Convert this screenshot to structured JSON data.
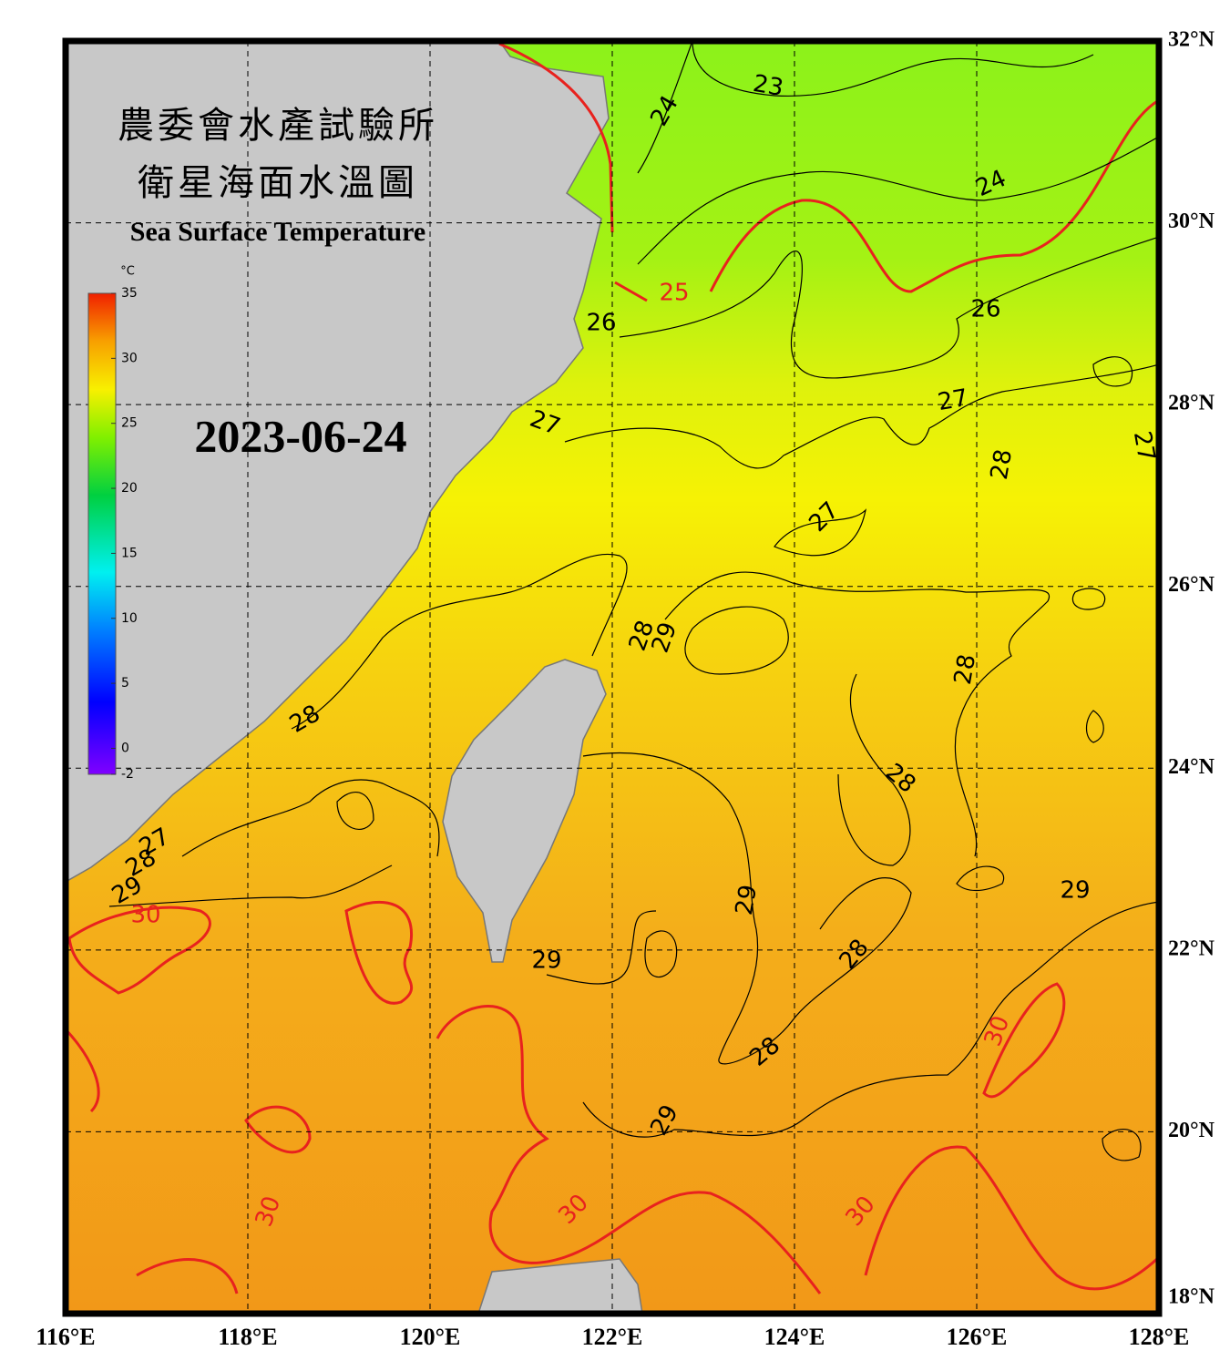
{
  "map_data": {
    "title_zh_1": "農委會水產試驗所",
    "title_zh_2": "衛星海面水溫圖",
    "title_en": "Sea Surface Temperature",
    "date": "2023-06-24",
    "colorbar": {
      "unit": "°C",
      "range": [
        -2,
        35
      ],
      "ticks": [
        35,
        30,
        25,
        20,
        15,
        10,
        5,
        0,
        -2
      ]
    },
    "lon_range": [
      116,
      128
    ],
    "lat_range": [
      18,
      32
    ],
    "lon_ticks": [
      {
        "value": 116,
        "label": "116°E"
      },
      {
        "value": 118,
        "label": "118°E"
      },
      {
        "value": 120,
        "label": "120°E"
      },
      {
        "value": 122,
        "label": "122°E"
      },
      {
        "value": 124,
        "label": "124°E"
      },
      {
        "value": 126,
        "label": "126°E"
      },
      {
        "value": 128,
        "label": "128°E"
      }
    ],
    "lat_ticks": [
      {
        "value": 18,
        "label": "18°N"
      },
      {
        "value": 20,
        "label": "20°N"
      },
      {
        "value": 22,
        "label": "22°N"
      },
      {
        "value": 24,
        "label": "24°N"
      },
      {
        "value": 26,
        "label": "26°N"
      },
      {
        "value": 28,
        "label": "28°N"
      },
      {
        "value": 30,
        "label": "30°N"
      },
      {
        "value": 32,
        "label": "32°N"
      }
    ],
    "grid": true,
    "contour_color": "#000000",
    "highlight_color": "#e8221e",
    "highlight_levels": [
      25,
      30
    ],
    "contour_labels": [
      23,
      24,
      24,
      25,
      26,
      26,
      27,
      27,
      27,
      28,
      27,
      28,
      29,
      28,
      28,
      28,
      27,
      28,
      29,
      30,
      29,
      29,
      29,
      28,
      30,
      28,
      29,
      30,
      30,
      30
    ]
  }
}
